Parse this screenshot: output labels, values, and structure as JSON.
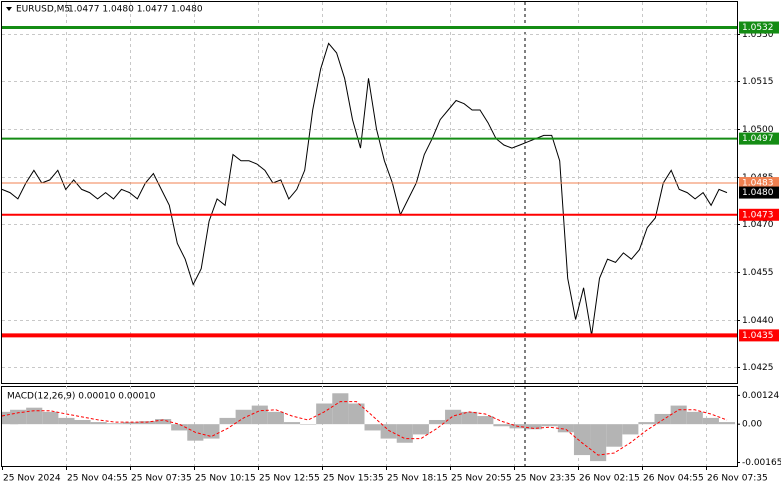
{
  "chart_data": [
    {
      "type": "line",
      "title": "EURUSD,M5",
      "subtitle": "1.0477 1.0480 1.0477 1.0480",
      "color": "#000000",
      "values": [
        1.0481,
        1.048,
        1.0478,
        1.0483,
        1.0487,
        1.0483,
        1.0484,
        1.0487,
        1.0481,
        1.0484,
        1.0481,
        1.048,
        1.0478,
        1.048,
        1.0478,
        1.0481,
        1.048,
        1.0478,
        1.0483,
        1.0486,
        1.0481,
        1.0476,
        1.0464,
        1.0459,
        1.0451,
        1.0456,
        1.0471,
        1.0478,
        1.0476,
        1.0492,
        1.049,
        1.049,
        1.0489,
        1.0487,
        1.0483,
        1.0484,
        1.0478,
        1.0481,
        1.0487,
        1.0506,
        1.0519,
        1.0527,
        1.0524,
        1.0516,
        1.0503,
        1.0494,
        1.0516,
        1.05,
        1.049,
        1.0483,
        1.0473,
        1.0478,
        1.0483,
        1.0492,
        1.0497,
        1.0503,
        1.0506,
        1.0509,
        1.0508,
        1.0506,
        1.0506,
        1.0502,
        1.0497,
        1.0495,
        1.0494,
        1.0495,
        1.0496,
        1.0497,
        1.0498,
        1.0498,
        1.049,
        1.0453,
        1.044,
        1.045,
        1.0435,
        1.0453,
        1.0459,
        1.0458,
        1.0461,
        1.0459,
        1.0462,
        1.0469,
        1.0472,
        1.0483,
        1.0487,
        1.0481,
        1.048,
        1.0478,
        1.048,
        1.0476,
        1.0481,
        1.048
      ],
      "xtick_labels": [
        "25 Nov 2024",
        "25 Nov 04:55",
        "25 Nov 07:35",
        "25 Nov 10:15",
        "25 Nov 12:55",
        "25 Nov 15:35",
        "25 Nov 18:15",
        "25 Nov 20:55",
        "25 Nov 23:35",
        "26 Nov 02:15",
        "26 Nov 04:55",
        "26 Nov 07:35"
      ],
      "ylim": [
        1.042,
        1.0535
      ],
      "yticks": [
        {
          "value": 1.053,
          "label": "1.0530"
        },
        1.0515,
        {
          "value": 1.05,
          "label": "1.0500"
        },
        1.0485,
        {
          "value": 1.047,
          "label": "1.0470"
        },
        1.0455,
        {
          "value": 1.044,
          "label": "1.0440"
        },
        1.0425
      ],
      "grid": true,
      "levels": [
        {
          "value": 1.0532,
          "color": "#148c14",
          "width": 3
        },
        {
          "value": 1.0497,
          "color": "#148c14",
          "width": 2
        },
        {
          "value": 1.0483,
          "color": "#f08050",
          "width": 1
        },
        {
          "value": 1.048,
          "label": "1.0480",
          "color": "#000000",
          "width": 0
        },
        {
          "value": 1.0473,
          "color": "#ff0000",
          "width": 2
        },
        {
          "value": 1.0435,
          "color": "#ff0000",
          "width": 4
        }
      ]
    },
    {
      "type": "macd",
      "title": "MACD(12,26,9) 0.00010 0.00010",
      "series": [
        {
          "style": "histogram",
          "color": "#b4b4b4",
          "values": [
            0.00053,
            0.00062,
            0.00071,
            0.00053,
            0.00027,
            0.00018,
            9e-05,
            4e-05,
            9e-05,
            0.00013,
            0.00022,
            -0.00027,
            -0.00071,
            -0.00062,
            0.00027,
            0.00062,
            0.0008,
            0.00053,
            9e-05,
            0,
            0.00089,
            0.00133,
            0.00089,
            -0.00027,
            -0.00062,
            -0.0008,
            -0.00044,
            0.00018,
            0.00062,
            0.00053,
            0.00035,
            -9e-05,
            -0.00018,
            -0.00022,
            -9e-05,
            -0.00035,
            -0.00133,
            -0.00159,
            -0.00097,
            -0.00044,
            9e-05,
            0.00044,
            0.0008,
            0.00053,
            0.00027,
            9e-05
          ]
        },
        {
          "style": "dashed",
          "color": "#ff0000",
          "values": [
            0.00035,
            0.00049,
            0.00058,
            0.00058,
            0.00044,
            0.00031,
            0.00018,
            9e-05,
            9e-05,
            9e-05,
            0.00018,
            0,
            -0.00035,
            -0.00053,
            -0.00018,
            0.00027,
            0.00058,
            0.00062,
            0.00035,
            0.00018,
            0.00053,
            0.00097,
            0.00097,
            0.00035,
            -0.00027,
            -0.00062,
            -0.00062,
            -0.00018,
            0.00035,
            0.00053,
            0.00044,
            0.00013,
            -9e-05,
            -0.00018,
            -0.00013,
            -0.00022,
            -0.0008,
            -0.00133,
            -0.00124,
            -0.0008,
            -0.00027,
            0.00018,
            0.00062,
            0.00062,
            0.00044,
            0.00018
          ]
        }
      ],
      "ylim": [
        -0.0018,
        0.0016
      ],
      "yticks": [
        0.00124,
        {
          "value": 0,
          "label": "0.00"
        },
        -0.00165
      ]
    }
  ]
}
